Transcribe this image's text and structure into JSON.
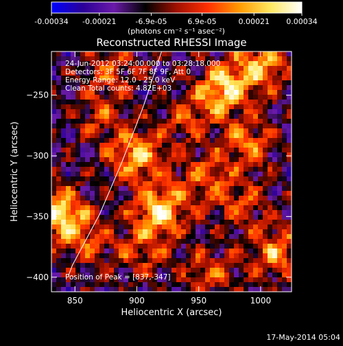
{
  "chart_data": {
    "type": "heatmap",
    "title": "Reconstructed RHESSI Image",
    "xlabel": "Heliocentric X (arcsec)",
    "ylabel": "Heliocentric Y (arcsec)",
    "xlim": [
      831,
      1025
    ],
    "ylim": [
      -412,
      -214
    ],
    "xticks": [
      850,
      900,
      950,
      1000
    ],
    "yticks": [
      -250,
      -300,
      -350,
      -400
    ],
    "colorbar": {
      "min": -0.00034,
      "max": 0.00034,
      "tick_values": [
        -0.00034,
        -0.00021,
        -6.9e-05,
        6.9e-05,
        0.00021,
        0.00034
      ],
      "tick_labels": [
        "-0.00034",
        "-0.00021",
        "-6.9e-05",
        "6.9e-05",
        "0.00021",
        "0.00034"
      ],
      "unit_label": "(photons cm⁻² s⁻¹ asec⁻²)",
      "colormap": [
        "#0000ff",
        "#2a0098",
        "#6a1aa8",
        "#000000",
        "#a01000",
        "#ff3000",
        "#ff9a00",
        "#ffe860",
        "#ffffff"
      ]
    },
    "info_lines": [
      "24-Jun-2012 03:24:00.000 to 03:28:18.000",
      "Detectors: 3F 5F 6F 7F 8F 9F, Att 0",
      "Energy Range: 12.0 - 25.0 keV",
      "Clean     Total counts: 4.82E+03"
    ],
    "peak_label": "Position of Peak = [837,-347]",
    "peak_position": [
      837,
      -347
    ],
    "limb_arc": [
      [
        920,
        -214
      ],
      [
        905,
        -260
      ],
      [
        888,
        -305
      ],
      [
        870,
        -348
      ],
      [
        848,
        -390
      ],
      [
        845,
        -398
      ]
    ],
    "sources": [
      {
        "x": 900,
        "y": -300,
        "strength": 0.85
      },
      {
        "x": 918,
        "y": -345,
        "strength": 0.95
      },
      {
        "x": 837,
        "y": -347,
        "strength": 1.0
      },
      {
        "x": 970,
        "y": -245,
        "strength": 0.95
      },
      {
        "x": 1000,
        "y": -225,
        "strength": 0.8
      },
      {
        "x": 1012,
        "y": -380,
        "strength": 0.7
      },
      {
        "x": 955,
        "y": -318,
        "strength": 0.55
      },
      {
        "x": 860,
        "y": -370,
        "strength": 0.5
      },
      {
        "x": 990,
        "y": -290,
        "strength": 0.6
      },
      {
        "x": 880,
        "y": -230,
        "strength": 0.5
      },
      {
        "x": 940,
        "y": -270,
        "strength": 0.45
      },
      {
        "x": 870,
        "y": -270,
        "strength": 0.4
      },
      {
        "x": 985,
        "y": -340,
        "strength": 0.45
      },
      {
        "x": 960,
        "y": -395,
        "strength": 0.5
      },
      {
        "x": 905,
        "y": -380,
        "strength": 0.45
      }
    ]
  },
  "footer": {
    "timestamp": "17-May-2014 05:04"
  }
}
